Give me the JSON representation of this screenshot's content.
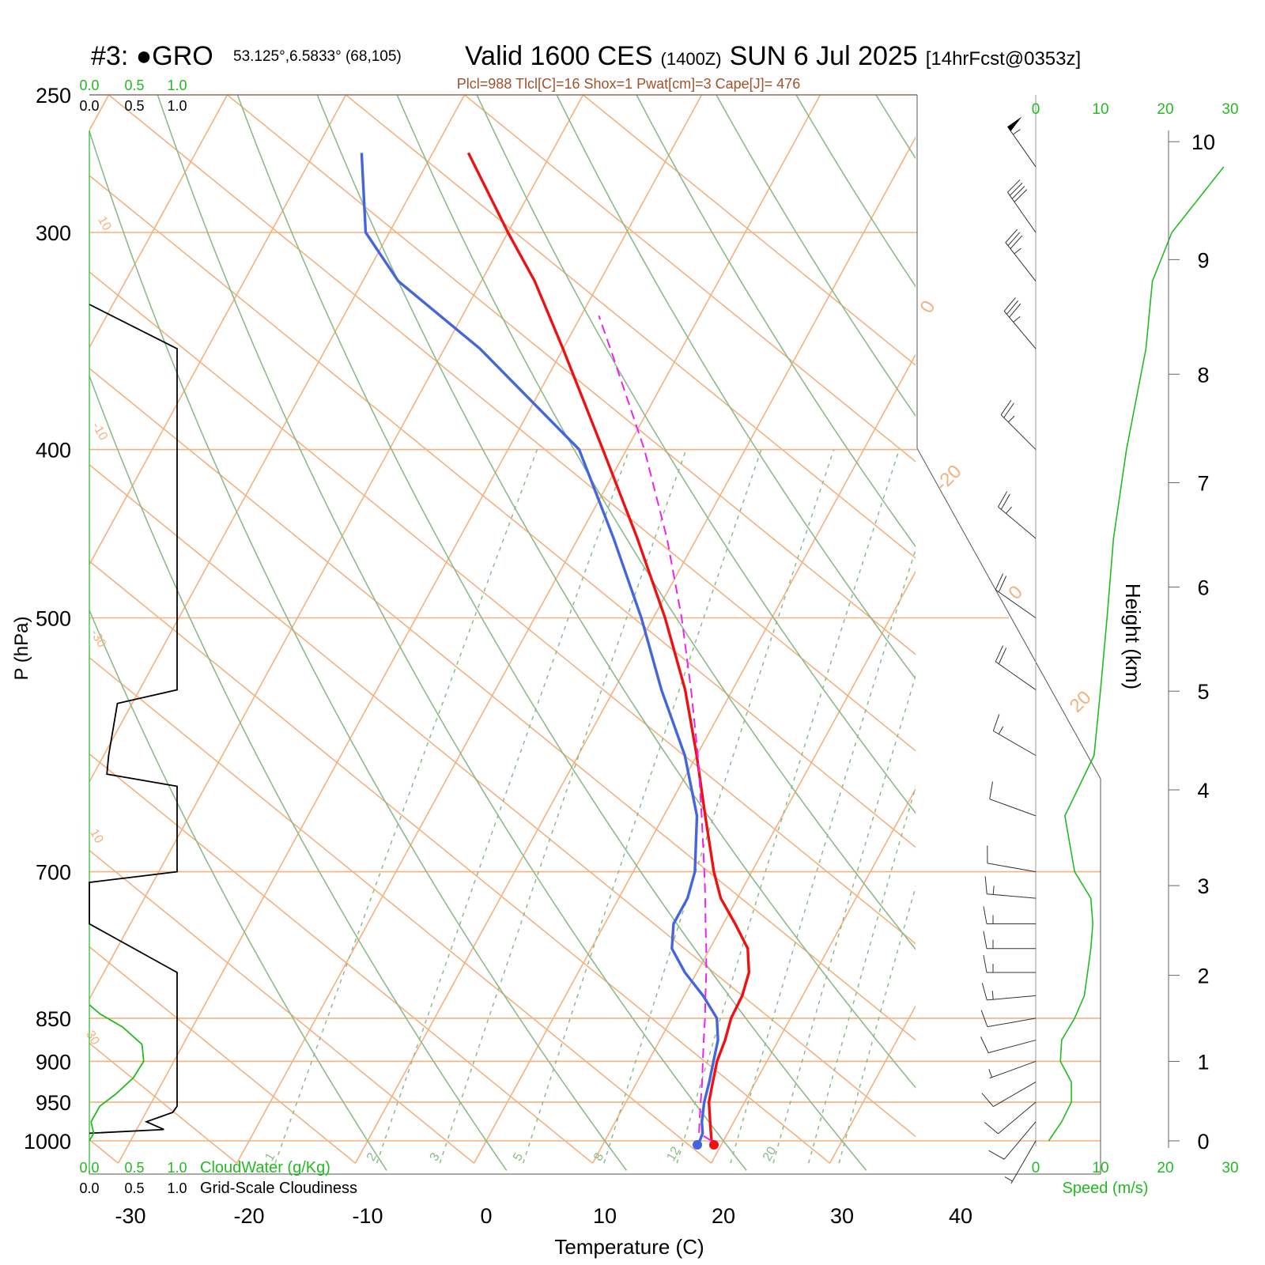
{
  "header": {
    "station_id": "#3: ",
    "station_name": "●GRO",
    "coords": "53.125°,6.5833° (68,105)",
    "valid": "Valid 1600 CES",
    "zulu": "(1400Z)",
    "date": "SUN 6 Jul 2025",
    "forecast": "[14hrFcst@0353z]",
    "indices": "Plcl=988 Tlcl[C]=16 Shox=1 Pwat[cm]=3 Cape[J]= 476"
  },
  "colors": {
    "temperature": "#ee1111",
    "dewpoint": "#4466dd",
    "parcel": "#ee22ee",
    "isotherm_grid": "#f6b07e",
    "dry_adiabat": "#8dba8d",
    "mixing_ratio": "#8dba8d",
    "cloud_water": "#22bb22",
    "cloudiness": "#000000",
    "wind_speed": "#22bb22",
    "indices_text": "#a0522d"
  },
  "chart_data": {
    "type": "line",
    "title": "Valid 1600 CES (1400Z) SUN 6 Jul 2025",
    "xlabel": "Temperature (C)",
    "ylabel": "P (hPa)",
    "y2label": "Height (km)",
    "y_scale": "log",
    "skew_deg_per_decade": 80,
    "xlim_at_1000hPa": [
      -34,
      36
    ],
    "ylim": [
      1030,
      250
    ],
    "x_ticks": [
      -30,
      -20,
      -10,
      0,
      10,
      20,
      30,
      40
    ],
    "p_ticks": [
      250,
      300,
      400,
      500,
      700,
      850,
      900,
      950,
      1000
    ],
    "height_ticks_km": [
      0,
      1,
      2,
      3,
      4,
      5,
      6,
      7,
      8,
      9,
      10
    ],
    "height_tick_pressures": [
      1000,
      900,
      803,
      713,
      628,
      551,
      480,
      418,
      362,
      311,
      266
    ],
    "isotherm_labels": [
      "10",
      "0",
      "-10",
      "-20",
      "-30",
      "0",
      "10",
      "20",
      "30"
    ],
    "mixing_ratio_labels": [
      "1",
      "2",
      "3",
      "5",
      "8",
      "12",
      "20"
    ],
    "mixing_ratios": [
      1,
      2,
      3,
      5,
      8,
      12,
      20
    ],
    "series": [
      {
        "name": "Temperature",
        "pressure": [
          1000,
          990,
          975,
          950,
          925,
          900,
          875,
          850,
          825,
          800,
          775,
          750,
          725,
          700,
          650,
          600,
          550,
          500,
          450,
          400,
          350,
          320,
          300,
          270
        ],
        "values": [
          19.0,
          18.6,
          18.0,
          17.0,
          16.4,
          15.8,
          15.5,
          15.0,
          14.9,
          14.4,
          13.2,
          11.0,
          8.6,
          6.8,
          3.5,
          0.0,
          -4.0,
          -9.0,
          -15.0,
          -22.0,
          -30.0,
          -35.5,
          -40.0,
          -47.0
        ]
      },
      {
        "name": "Dewpoint",
        "pressure": [
          1000,
          990,
          975,
          950,
          925,
          900,
          875,
          850,
          825,
          800,
          775,
          750,
          725,
          700,
          650,
          600,
          550,
          500,
          450,
          400,
          350,
          320,
          300,
          270
        ],
        "values": [
          18.0,
          17.9,
          17.3,
          16.6,
          16.1,
          15.5,
          14.9,
          13.8,
          11.6,
          9.0,
          6.8,
          5.8,
          5.8,
          5.2,
          2.8,
          -1.0,
          -6.0,
          -11.0,
          -17.0,
          -24.0,
          -37.0,
          -47.0,
          -52.0,
          -56.0
        ]
      },
      {
        "name": "Parcel",
        "pressure": [
          1000,
          990,
          975,
          950,
          925,
          900,
          875,
          850,
          825,
          800,
          775,
          750,
          725,
          700,
          650,
          600,
          550,
          500,
          450,
          400,
          350,
          335
        ],
        "values": [
          19.0,
          17.6,
          17.1,
          16.3,
          15.5,
          14.6,
          13.7,
          12.8,
          11.8,
          10.8,
          9.7,
          8.5,
          7.3,
          6.0,
          3.2,
          0.1,
          -3.5,
          -7.6,
          -12.5,
          -18.5,
          -26.0,
          -28.5
        ]
      }
    ],
    "surface_points": [
      {
        "name": "Temperature",
        "pressure": 1000,
        "value": 19.0
      },
      {
        "name": "Dewpoint",
        "pressure": 1000,
        "value": 18.0
      }
    ],
    "wind_profile": {
      "pressure": [
        1000,
        975,
        950,
        925,
        900,
        875,
        850,
        825,
        800,
        775,
        750,
        725,
        700,
        650,
        600,
        550,
        500,
        450,
        400,
        350,
        320,
        300,
        275
      ],
      "speed_ms": [
        2.0,
        4.0,
        5.5,
        5.5,
        3.8,
        4.0,
        6.0,
        7.5,
        8.0,
        8.5,
        8.8,
        8.5,
        6.0,
        4.5,
        9.0,
        10.0,
        11.0,
        12.0,
        14.0,
        17.0,
        18.0,
        21.0,
        29.0
      ],
      "direction_deg": [
        210,
        220,
        230,
        240,
        250,
        255,
        260,
        265,
        270,
        270,
        270,
        275,
        280,
        290,
        300,
        305,
        305,
        310,
        315,
        320,
        322,
        325,
        325
      ]
    },
    "cloud_water_gkg": {
      "xlabel": "CloudWater (g/Kg)",
      "ticks": [
        "0.0",
        "0.5",
        "1.0"
      ],
      "pressure": [
        1000,
        990,
        975,
        955,
        940,
        920,
        900,
        880,
        860,
        845,
        835
      ],
      "values": [
        0.0,
        0.05,
        0.02,
        0.12,
        0.3,
        0.5,
        0.62,
        0.6,
        0.38,
        0.12,
        0.0
      ]
    },
    "cloudiness": {
      "xlabel": "Grid-Scale Cloudiness",
      "ticks": [
        "0.0",
        "0.5",
        "1.0"
      ],
      "pressure": [
        990,
        985,
        975,
        963,
        955,
        800,
        750,
        710,
        700,
        625,
        615,
        600,
        560,
        550,
        360,
        350,
        330
      ],
      "values": [
        0.0,
        0.85,
        0.65,
        0.95,
        1.0,
        1.0,
        0.0,
        0.0,
        1.0,
        1.0,
        0.2,
        0.22,
        0.32,
        1.0,
        1.0,
        1.0,
        0.0
      ]
    },
    "speed_axis": {
      "label": "Speed (m/s)",
      "ticks": [
        0,
        10,
        20,
        30
      ],
      "xlim": [
        0,
        30
      ]
    }
  }
}
